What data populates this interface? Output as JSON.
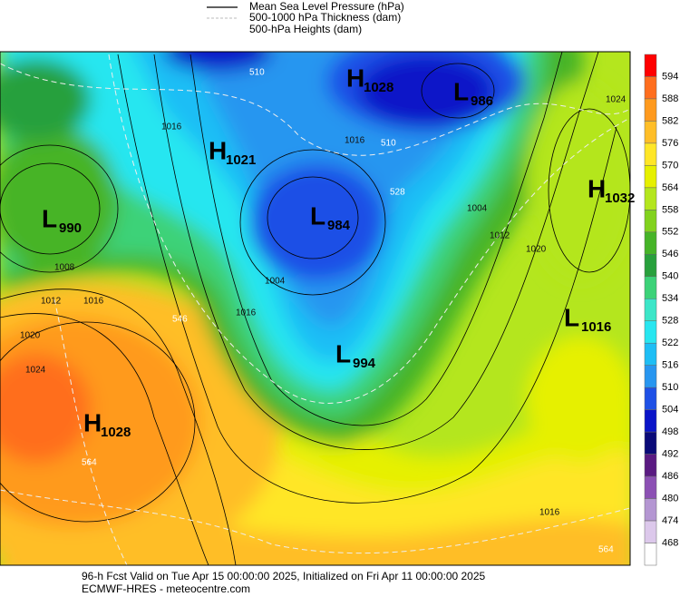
{
  "legend": {
    "items": [
      "Mean Sea Level Pressure (hPa)",
      "500-1000 hPa Thickness (dam)",
      "500-hPa Heights (dam)"
    ]
  },
  "colorbar": {
    "labels": [
      594,
      588,
      582,
      576,
      570,
      564,
      558,
      552,
      546,
      540,
      534,
      528,
      522,
      516,
      510,
      504,
      498,
      492,
      486,
      480,
      474,
      468
    ],
    "colors": [
      "#ff0000",
      "#ff6e1e",
      "#ff9a1e",
      "#ffbe28",
      "#ffe628",
      "#e6f000",
      "#b4e61e",
      "#82d21e",
      "#46b428",
      "#28a03c",
      "#3cd278",
      "#3ce6c8",
      "#28e6f0",
      "#1ebef5",
      "#2896f0",
      "#1e50e6",
      "#0a14c8",
      "#0a0a78",
      "#5a1a82",
      "#8c50b4",
      "#b496d2",
      "#dcc8eb",
      "#ffffff"
    ]
  },
  "systems": [
    {
      "letter": "H",
      "value": 1028
    },
    {
      "letter": "L",
      "value": 986
    },
    {
      "letter": "H",
      "value": 1021
    },
    {
      "letter": "L",
      "value": 990
    },
    {
      "letter": "L",
      "value": 984
    },
    {
      "letter": "H",
      "value": 1032
    },
    {
      "letter": "L",
      "value": 1016
    },
    {
      "letter": "L",
      "value": 994
    },
    {
      "letter": "H",
      "value": 1028
    }
  ],
  "contour_labels": [
    510,
    510,
    528,
    546,
    564,
    564,
    1016,
    1008,
    1012,
    1016,
    1020,
    1024,
    1004,
    1004,
    1012,
    1020,
    1016,
    1024,
    1016,
    1016
  ],
  "footer": {
    "line1": "96-h Fcst Valid on Tue Apr 15 00:00:00 2025, Initialized on Fri Apr 11 00:00:00 2025",
    "line2": "ECMWF-HRES - meteocentre.com"
  }
}
